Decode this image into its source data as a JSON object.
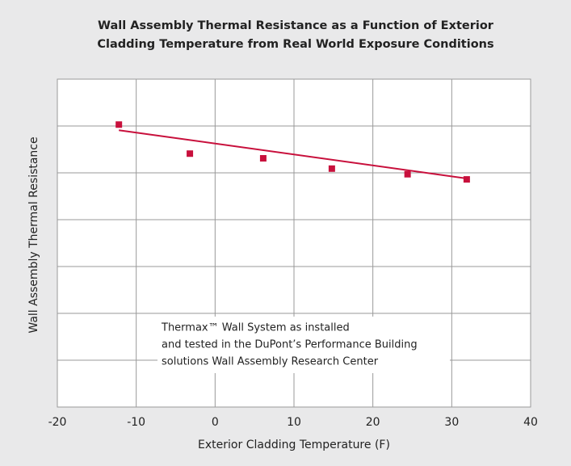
{
  "chart_data": {
    "type": "scatter",
    "title": [
      "Wall Assembly Thermal Resistance as a Function of Exterior",
      "Cladding Temperature from Real World Exposure Conditions"
    ],
    "x_label": "Exterior Cladding Temperature (F)",
    "y_label": "Wall Assembly Thermal Resistance",
    "annotation": [
      "Thermax™ Wall System as installed",
      "and tested in the DuPont’s Performance Building",
      "solutions Wall Assembly Research Center"
    ],
    "x": [
      -12.2,
      -3.2,
      6.1,
      14.8,
      24.4,
      31.9
    ],
    "values": [
      6.03,
      5.41,
      5.31,
      5.09,
      4.97,
      4.86
    ],
    "color": "#c8103c",
    "trendline": {
      "x": [
        -12.2,
        31.9
      ],
      "y": [
        5.91,
        4.88
      ],
      "color": "#c8103c"
    },
    "xlim": [
      -20,
      40
    ],
    "xticks": [
      -20,
      -10,
      0,
      10,
      20,
      30,
      40
    ],
    "ylim": [
      0,
      7
    ],
    "yticks": [
      0,
      1,
      2,
      3,
      4,
      5,
      6,
      7
    ],
    "ytick_labels": false,
    "grid": true
  }
}
